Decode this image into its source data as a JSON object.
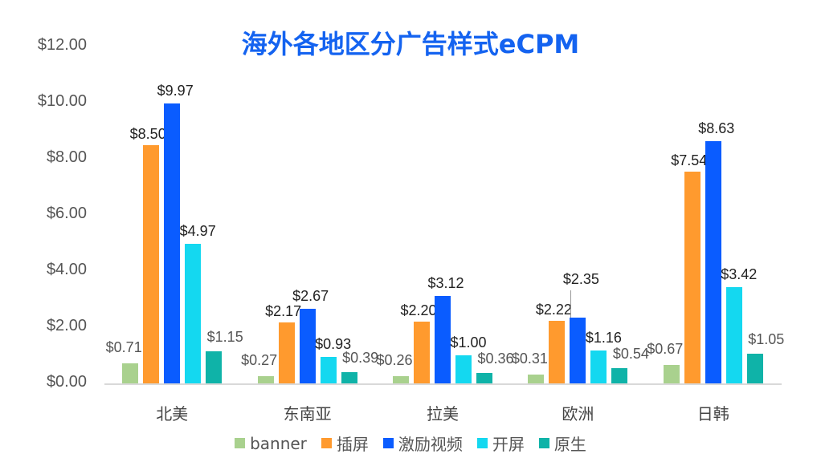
{
  "chart_data": {
    "type": "bar",
    "title": "海外各地区分广告样式eCPM",
    "xlabel": "",
    "ylabel": "",
    "categories": [
      "北美",
      "东南亚",
      "拉美",
      "欧洲",
      "日韩"
    ],
    "series": [
      {
        "name": "banner",
        "color": "#a9d18e",
        "values": [
          0.71,
          0.27,
          0.26,
          0.31,
          0.67
        ]
      },
      {
        "name": "插屏",
        "color": "#ff9a2e",
        "values": [
          8.5,
          2.17,
          2.2,
          2.22,
          7.54
        ]
      },
      {
        "name": "激励视频",
        "color": "#0a5cff",
        "values": [
          9.97,
          2.67,
          3.12,
          2.35,
          8.63
        ]
      },
      {
        "name": "开屏",
        "color": "#14d8f0",
        "values": [
          4.97,
          0.93,
          1.0,
          1.16,
          3.42
        ]
      },
      {
        "name": "原生",
        "color": "#0fb3a8",
        "values": [
          1.15,
          0.39,
          0.36,
          0.54,
          1.05
        ]
      }
    ],
    "ylim": [
      0,
      12
    ],
    "yticks": [
      "$0.00",
      "$2.00",
      "$4.00",
      "$6.00",
      "$8.00",
      "$10.00",
      "$12.00"
    ],
    "grid": false,
    "legend_position": "bottom",
    "value_format": "$0.00"
  }
}
